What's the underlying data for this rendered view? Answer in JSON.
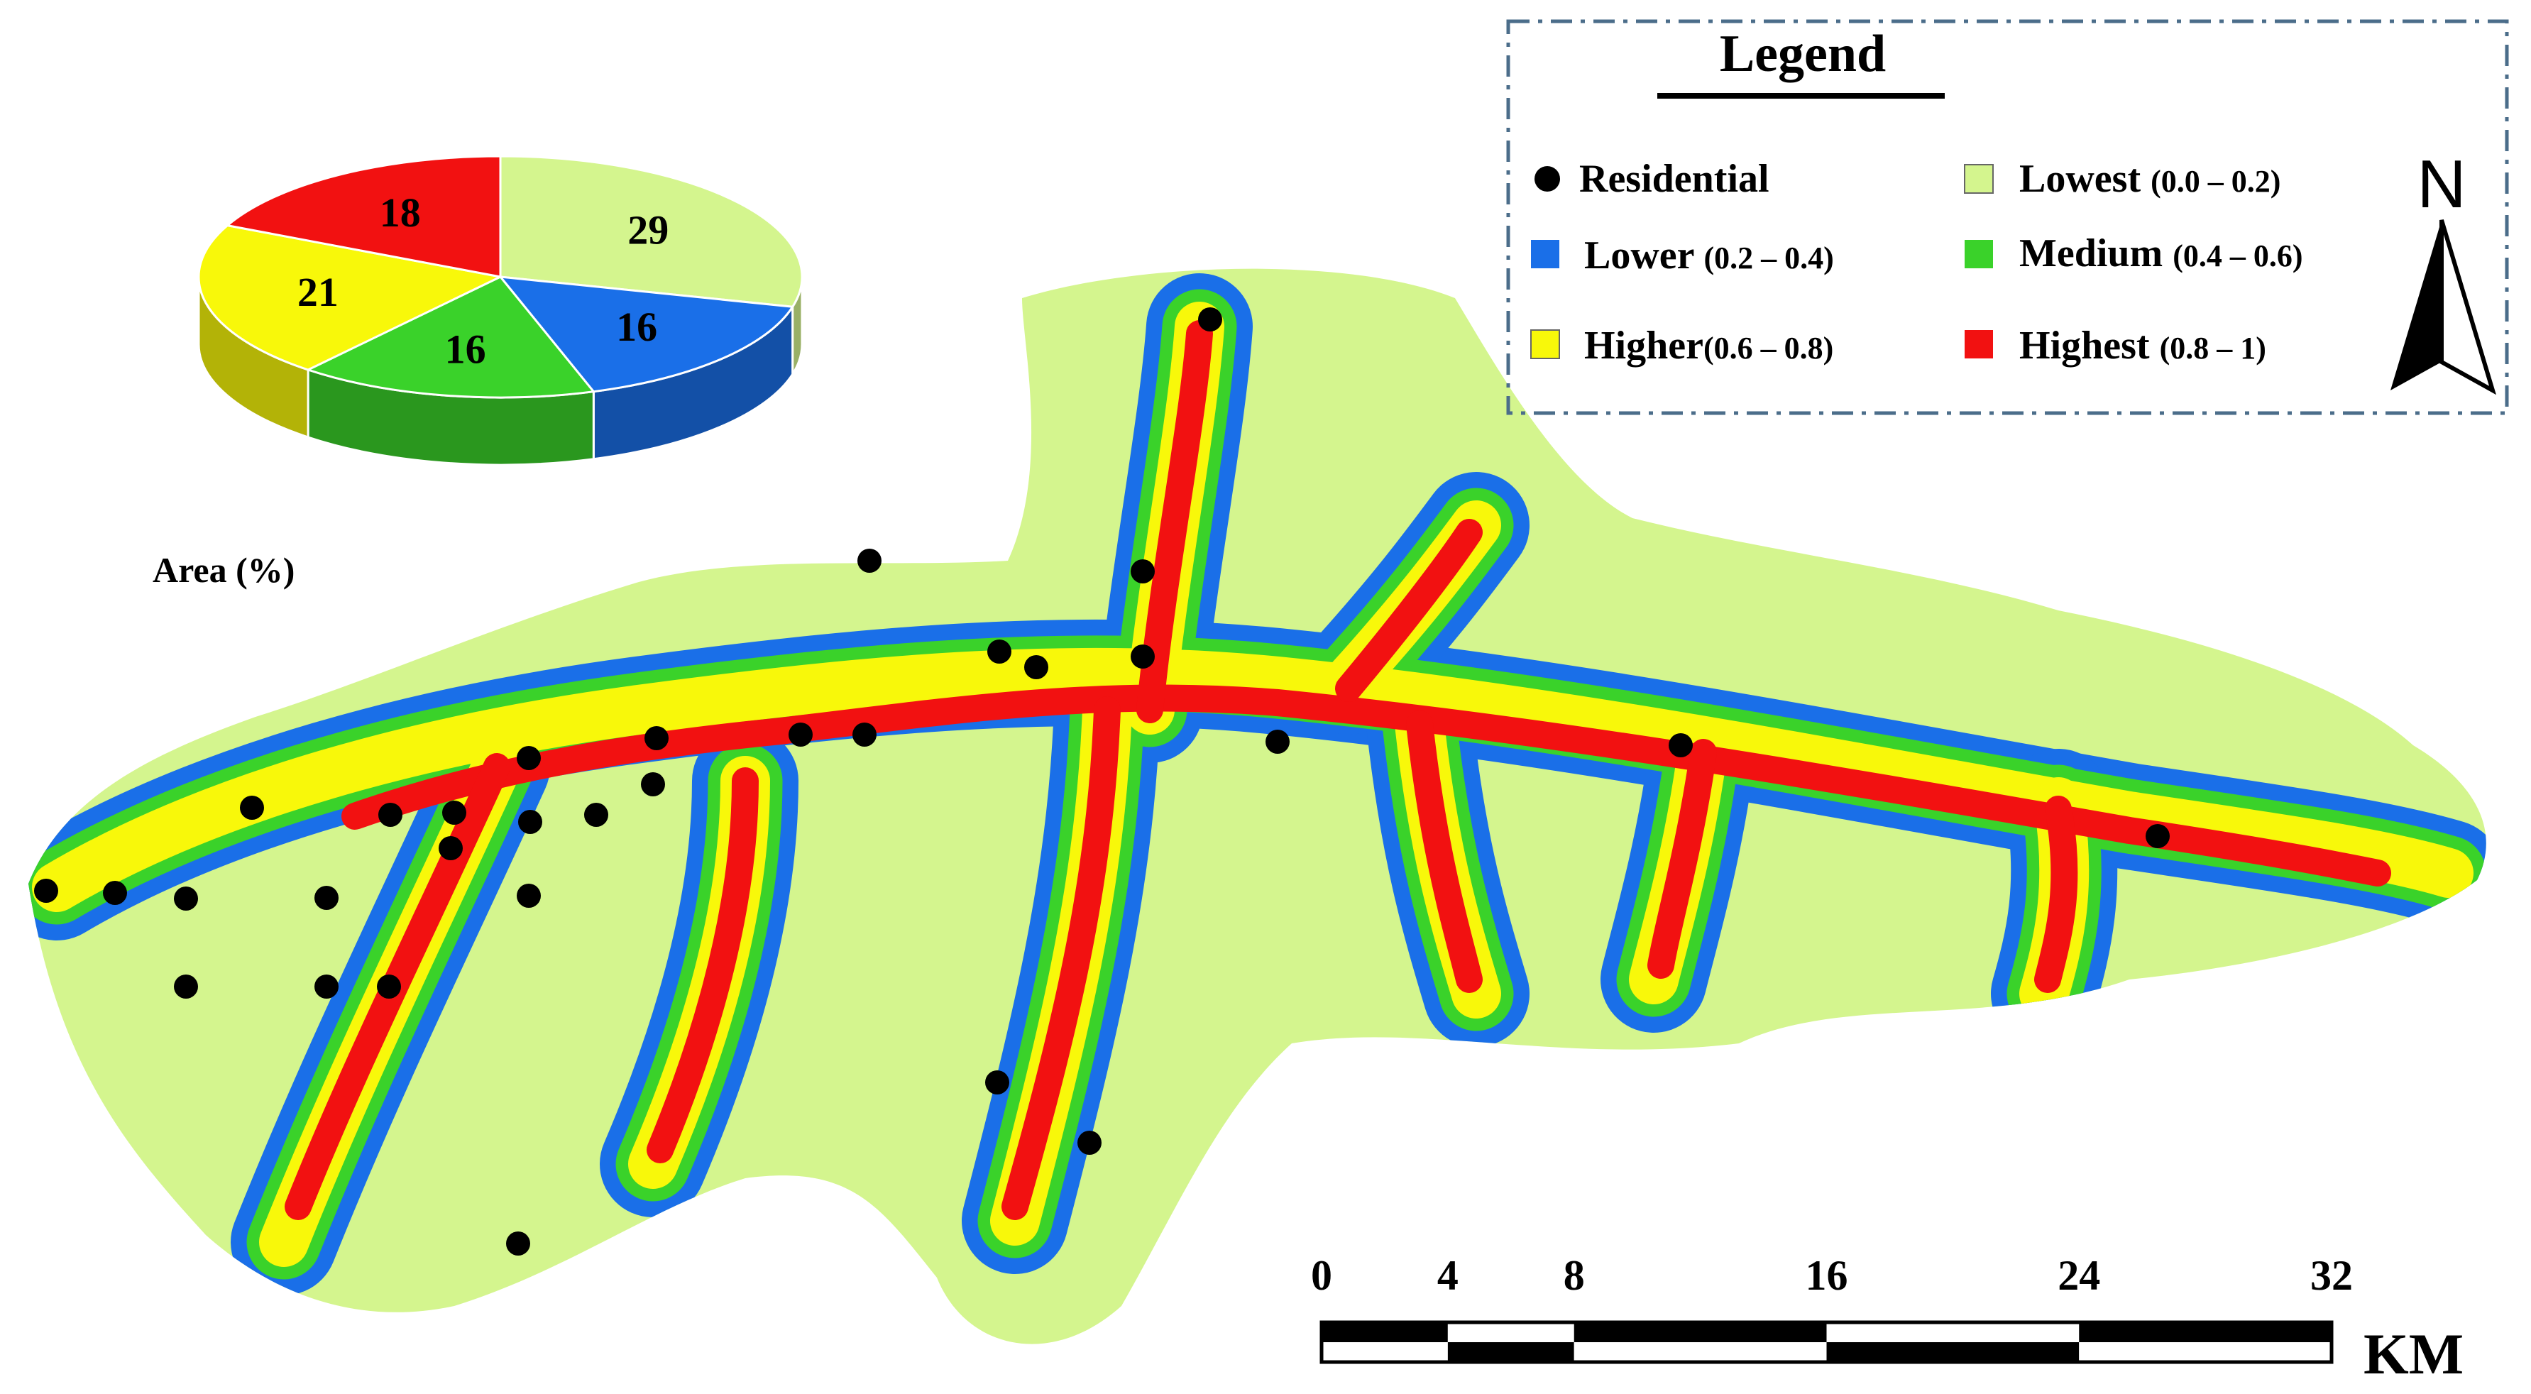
{
  "legend": {
    "title": "Legend",
    "residential": "Residential",
    "classes": [
      {
        "key": "lowest",
        "label": "Lowest",
        "range": "(0.0 – 0.2)",
        "color": "#d4f58e"
      },
      {
        "key": "lower",
        "label": "Lower",
        "range": "(0.2 – 0.4)",
        "color": "#1a6fe8"
      },
      {
        "key": "medium",
        "label": "Medium",
        "range": "(0.4 – 0.6)",
        "color": "#3ad22a"
      },
      {
        "key": "higher",
        "label": "Higher",
        "range": "(0.6 – 0.8)",
        "color": "#f8f80a"
      },
      {
        "key": "highest",
        "label": "Highest",
        "range": "(0.8 – 1)",
        "color": "#f21111"
      }
    ]
  },
  "north_arrow": {
    "label": "N"
  },
  "scale_bar": {
    "ticks": [
      "0",
      "4",
      "8",
      "16",
      "24",
      "32"
    ],
    "tick_values": [
      0,
      4,
      8,
      16,
      24,
      32
    ],
    "unit": "KM"
  },
  "chart_data": {
    "type": "pie",
    "xlabel": "Area (%)",
    "slices": [
      {
        "label": "Lowest",
        "value": 29,
        "color": "#d4f58e"
      },
      {
        "label": "Lower",
        "value": 16,
        "color": "#1a6fe8"
      },
      {
        "label": "Medium",
        "value": 16,
        "color": "#3ad22a"
      },
      {
        "label": "Higher",
        "value": 21,
        "color": "#f8f80a"
      },
      {
        "label": "Highest",
        "value": 18,
        "color": "#f21111"
      }
    ]
  }
}
